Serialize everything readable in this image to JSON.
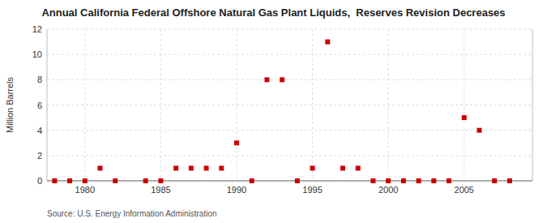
{
  "chart_data": {
    "type": "scatter",
    "title": "Annual California Federal Offshore Natural Gas Plant Liquids,  Reserves Revision Decreases",
    "ylabel": "Million Barrels",
    "source": "Source: U.S. Energy Information Administration",
    "x": [
      1978,
      1979,
      1980,
      1981,
      1982,
      1984,
      1985,
      1986,
      1987,
      1988,
      1989,
      1990,
      1991,
      1992,
      1993,
      1994,
      1995,
      1996,
      1997,
      1998,
      1999,
      2000,
      2001,
      2002,
      2003,
      2004,
      2005,
      2006,
      2007,
      2008
    ],
    "values": [
      0,
      0,
      0,
      1,
      0,
      0,
      0,
      1,
      1,
      1,
      1,
      3,
      0,
      8,
      8,
      0,
      1,
      11,
      1,
      1,
      0,
      0,
      0,
      0,
      0,
      0,
      5,
      4,
      0,
      0
    ],
    "color": "#cc0000",
    "marker": "square",
    "xlim": [
      1977.5,
      2009.5
    ],
    "ylim": [
      0,
      12
    ],
    "xticks": [
      1980,
      1985,
      1990,
      1995,
      2000,
      2005
    ],
    "yticks": [
      0,
      2,
      4,
      6,
      8,
      10,
      12
    ],
    "grid": true
  }
}
